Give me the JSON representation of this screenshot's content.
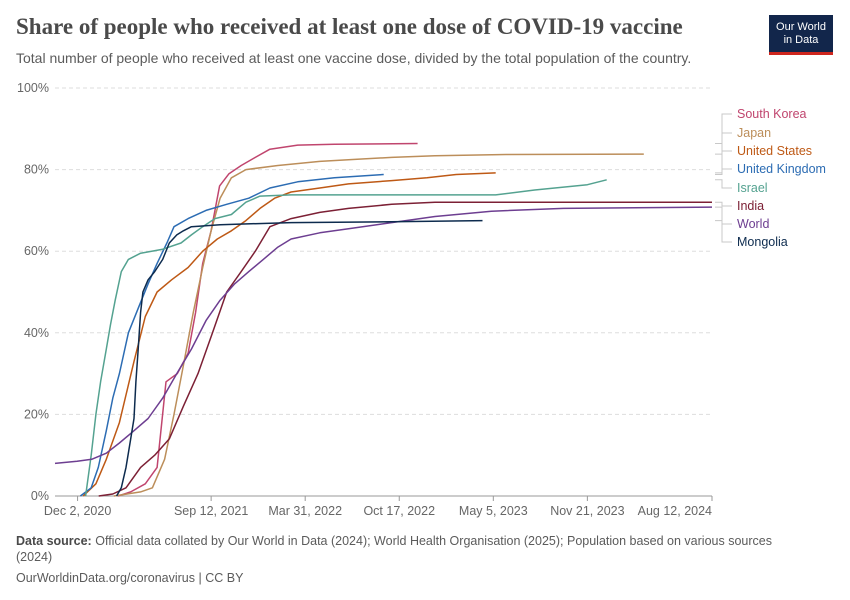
{
  "header": {
    "title": "Share of people who received at least one dose of COVID-19 vaccine",
    "subtitle": "Total number of people who received at least one vaccine dose, divided by the total population of the country.",
    "logo_line1": "Our World",
    "logo_line2": "in Data"
  },
  "footer": {
    "source_label": "Data source:",
    "source_text": "Official data collated by Our World in Data (2024); World Health Organisation (2025); Population based on various sources (2024)",
    "credit": "OurWorldinData.org/coronavirus | CC BY"
  },
  "chart_data": {
    "type": "line",
    "title": "Share of people who received at least one dose of COVID-19 vaccine",
    "ylim": [
      0,
      100
    ],
    "xlim": [
      "2020-10-15",
      "2024-08-12"
    ],
    "y_ticks": [
      0,
      20,
      40,
      60,
      80,
      100
    ],
    "y_tick_labels": [
      "0%",
      "20%",
      "40%",
      "60%",
      "80%",
      "100%"
    ],
    "x_ticks": [
      "2020-12-02",
      "2021-09-12",
      "2022-03-31",
      "2022-10-17",
      "2023-05-05",
      "2023-11-21",
      "2024-08-12"
    ],
    "x_tick_labels": [
      "Dec 2, 2020",
      "Sep 12, 2021",
      "Mar 31, 2022",
      "Oct 17, 2022",
      "May 5, 2023",
      "Nov 21, 2023",
      "Aug 12, 2024"
    ],
    "grid": "horizontal dashed",
    "legend": "right, line labels",
    "series": [
      {
        "name": "South Korea",
        "color": "#c0456e",
        "points": [
          [
            "2021-02-26",
            0
          ],
          [
            "2021-03-25",
            1
          ],
          [
            "2021-04-25",
            3
          ],
          [
            "2021-05-20",
            7
          ],
          [
            "2021-06-08",
            28
          ],
          [
            "2021-06-20",
            29
          ],
          [
            "2021-07-02",
            30
          ],
          [
            "2021-07-25",
            35
          ],
          [
            "2021-08-10",
            45
          ],
          [
            "2021-08-25",
            57
          ],
          [
            "2021-09-12",
            65
          ],
          [
            "2021-09-30",
            76
          ],
          [
            "2021-10-20",
            79
          ],
          [
            "2021-11-15",
            81
          ],
          [
            "2021-12-15",
            83
          ],
          [
            "2022-01-15",
            85
          ],
          [
            "2022-03-15",
            86
          ],
          [
            "2022-06-01",
            86.2
          ],
          [
            "2022-11-25",
            86.4
          ]
        ]
      },
      {
        "name": "Japan",
        "color": "#bc8e5a",
        "points": [
          [
            "2021-02-17",
            0
          ],
          [
            "2021-04-15",
            1
          ],
          [
            "2021-05-10",
            2
          ],
          [
            "2021-06-05",
            9
          ],
          [
            "2021-06-25",
            20
          ],
          [
            "2021-07-15",
            32
          ],
          [
            "2021-08-05",
            45
          ],
          [
            "2021-08-25",
            56
          ],
          [
            "2021-09-12",
            65
          ],
          [
            "2021-10-01",
            73
          ],
          [
            "2021-10-25",
            78
          ],
          [
            "2021-11-25",
            80
          ],
          [
            "2022-02-01",
            81
          ],
          [
            "2022-05-01",
            82
          ],
          [
            "2022-07-15",
            82.5
          ],
          [
            "2022-10-01",
            83
          ],
          [
            "2023-01-01",
            83.4
          ],
          [
            "2023-06-01",
            83.7
          ],
          [
            "2024-03-20",
            83.8
          ]
        ]
      },
      {
        "name": "United States",
        "color": "#be5915",
        "points": [
          [
            "2020-12-14",
            0
          ],
          [
            "2021-01-10",
            3
          ],
          [
            "2021-02-01",
            9
          ],
          [
            "2021-03-01",
            18
          ],
          [
            "2021-04-01",
            33
          ],
          [
            "2021-04-25",
            44
          ],
          [
            "2021-05-20",
            50
          ],
          [
            "2021-06-20",
            53
          ],
          [
            "2021-07-25",
            56
          ],
          [
            "2021-08-25",
            60
          ],
          [
            "2021-09-25",
            63
          ],
          [
            "2021-10-25",
            65
          ],
          [
            "2021-11-25",
            67.5
          ],
          [
            "2021-12-25",
            70.5
          ],
          [
            "2022-01-25",
            73
          ],
          [
            "2022-03-01",
            74.5
          ],
          [
            "2022-05-01",
            75.5
          ],
          [
            "2022-07-01",
            76.5
          ],
          [
            "2022-10-01",
            77.3
          ],
          [
            "2022-12-15",
            78
          ],
          [
            "2023-02-15",
            78.8
          ],
          [
            "2023-05-10",
            79.2
          ]
        ]
      },
      {
        "name": "United Kingdom",
        "color": "#2c6cb3",
        "points": [
          [
            "2020-12-08",
            0
          ],
          [
            "2020-12-31",
            2
          ],
          [
            "2021-01-15",
            7
          ],
          [
            "2021-02-01",
            16
          ],
          [
            "2021-02-15",
            24
          ],
          [
            "2021-03-01",
            30
          ],
          [
            "2021-03-20",
            40
          ],
          [
            "2021-04-10",
            46
          ],
          [
            "2021-05-01",
            52
          ],
          [
            "2021-05-20",
            57
          ],
          [
            "2021-06-10",
            62
          ],
          [
            "2021-06-25",
            66
          ],
          [
            "2021-07-25",
            68
          ],
          [
            "2021-09-01",
            70
          ],
          [
            "2021-10-15",
            71.5
          ],
          [
            "2021-12-01",
            73
          ],
          [
            "2022-01-15",
            75.5
          ],
          [
            "2022-03-15",
            77
          ],
          [
            "2022-06-01",
            78
          ],
          [
            "2022-09-14",
            78.8
          ]
        ]
      },
      {
        "name": "Israel",
        "color": "#54a290",
        "points": [
          [
            "2020-12-19",
            0
          ],
          [
            "2020-12-31",
            10
          ],
          [
            "2021-01-10",
            20
          ],
          [
            "2021-01-20",
            28
          ],
          [
            "2021-02-01",
            36
          ],
          [
            "2021-02-10",
            42
          ],
          [
            "2021-02-20",
            48
          ],
          [
            "2021-03-05",
            55
          ],
          [
            "2021-03-20",
            58
          ],
          [
            "2021-04-15",
            59.5
          ],
          [
            "2021-06-01",
            60.5
          ],
          [
            "2021-07-10",
            62
          ],
          [
            "2021-08-01",
            64
          ],
          [
            "2021-08-25",
            66
          ],
          [
            "2021-09-20",
            68
          ],
          [
            "2021-10-25",
            69
          ],
          [
            "2021-11-25",
            72
          ],
          [
            "2021-12-25",
            73.5
          ],
          [
            "2022-03-01",
            73.8
          ],
          [
            "2022-09-01",
            73.8
          ],
          [
            "2023-03-01",
            73.8
          ],
          [
            "2023-05-10",
            73.8
          ],
          [
            "2023-08-01",
            75
          ],
          [
            "2023-11-21",
            76.3
          ],
          [
            "2024-01-01",
            77.5
          ]
        ]
      },
      {
        "name": "India",
        "color": "#7c2035",
        "points": [
          [
            "2021-01-16",
            0
          ],
          [
            "2021-02-15",
            0.5
          ],
          [
            "2021-03-15",
            2
          ],
          [
            "2021-04-15",
            7
          ],
          [
            "2021-05-15",
            10
          ],
          [
            "2021-06-15",
            14
          ],
          [
            "2021-07-15",
            22
          ],
          [
            "2021-08-15",
            30
          ],
          [
            "2021-09-15",
            40
          ],
          [
            "2021-10-15",
            50
          ],
          [
            "2021-11-15",
            55
          ],
          [
            "2021-12-15",
            60
          ],
          [
            "2022-01-15",
            66
          ],
          [
            "2022-03-01",
            68
          ],
          [
            "2022-05-01",
            69.5
          ],
          [
            "2022-07-01",
            70.5
          ],
          [
            "2022-10-01",
            71.5
          ],
          [
            "2023-01-01",
            72
          ],
          [
            "2024-08-12",
            72
          ]
        ]
      },
      {
        "name": "World",
        "color": "#6d3e91",
        "points": [
          [
            "2020-10-15",
            8
          ],
          [
            "2020-12-01",
            8.5
          ],
          [
            "2021-01-01",
            9
          ],
          [
            "2021-02-01",
            10.5
          ],
          [
            "2021-03-01",
            13
          ],
          [
            "2021-04-01",
            16
          ],
          [
            "2021-05-01",
            19
          ],
          [
            "2021-06-01",
            24
          ],
          [
            "2021-07-01",
            30
          ],
          [
            "2021-08-01",
            36
          ],
          [
            "2021-09-01",
            43
          ],
          [
            "2021-10-01",
            48
          ],
          [
            "2021-11-01",
            52
          ],
          [
            "2021-12-01",
            55
          ],
          [
            "2022-01-01",
            58
          ],
          [
            "2022-02-01",
            61
          ],
          [
            "2022-03-01",
            63
          ],
          [
            "2022-05-01",
            64.5
          ],
          [
            "2022-07-01",
            65.5
          ],
          [
            "2022-10-01",
            67
          ],
          [
            "2023-01-01",
            68.5
          ],
          [
            "2023-05-01",
            69.8
          ],
          [
            "2023-10-01",
            70.5
          ],
          [
            "2024-08-12",
            70.8
          ]
        ]
      },
      {
        "name": "Mongolia",
        "color": "#0d2b4e",
        "points": [
          [
            "2021-02-23",
            0
          ],
          [
            "2021-03-05",
            2
          ],
          [
            "2021-03-15",
            7
          ],
          [
            "2021-03-25",
            14
          ],
          [
            "2021-04-01",
            19
          ],
          [
            "2021-04-05",
            28
          ],
          [
            "2021-04-10",
            36
          ],
          [
            "2021-04-15",
            45
          ],
          [
            "2021-04-20",
            50
          ],
          [
            "2021-05-01",
            53
          ],
          [
            "2021-05-15",
            55
          ],
          [
            "2021-06-01",
            58
          ],
          [
            "2021-06-15",
            62
          ],
          [
            "2021-07-01",
            64
          ],
          [
            "2021-07-15",
            65
          ],
          [
            "2021-08-01",
            66
          ],
          [
            "2021-10-01",
            66.5
          ],
          [
            "2022-03-01",
            67
          ],
          [
            "2022-10-01",
            67.2
          ],
          [
            "2023-04-12",
            67.5
          ]
        ]
      }
    ]
  }
}
